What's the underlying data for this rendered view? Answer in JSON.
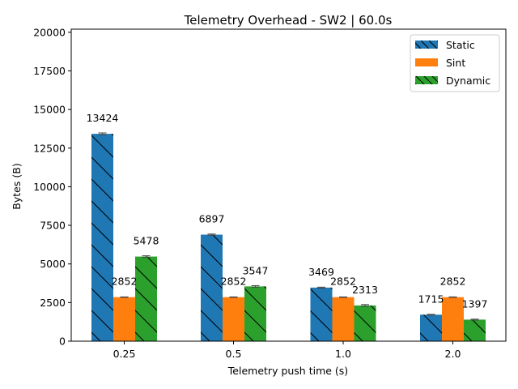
{
  "chart_data": {
    "type": "bar",
    "title": "Telemetry Overhead - SW2 | 60.0s",
    "xlabel": "Telemetry push time (s)",
    "ylabel": "Bytes (B)",
    "categories": [
      "0.25",
      "0.5",
      "1.0",
      "2.0"
    ],
    "ylim": [
      0,
      20200
    ],
    "yticks": [
      0,
      2500,
      5000,
      7500,
      10000,
      12500,
      15000,
      17500,
      20000
    ],
    "ytick_labels": [
      "0",
      "2500",
      "5000",
      "7500",
      "10000",
      "12500",
      "15000",
      "17500",
      "20000"
    ],
    "grid": false,
    "legend_position": "top-right",
    "series": [
      {
        "name": "Static",
        "color": "#1f77b4",
        "hatch": "backslash",
        "values": [
          13424,
          6897,
          3469,
          1715
        ],
        "labels": [
          "13424",
          "6897",
          "3469",
          "1715"
        ],
        "errors": [
          60,
          40,
          30,
          25
        ]
      },
      {
        "name": "Sint",
        "color": "#ff7f0e",
        "hatch": "none",
        "values": [
          2852,
          2852,
          2852,
          2852
        ],
        "labels": [
          "2852",
          "2852",
          "2852",
          "2852"
        ],
        "errors": [
          15,
          15,
          15,
          15
        ]
      },
      {
        "name": "Dynamic",
        "color": "#2ca02c",
        "hatch": "backslash",
        "values": [
          5478,
          3547,
          2313,
          1397
        ],
        "labels": [
          "5478",
          "3547",
          "2313",
          "1397"
        ],
        "errors": [
          50,
          50,
          60,
          30
        ]
      }
    ]
  }
}
